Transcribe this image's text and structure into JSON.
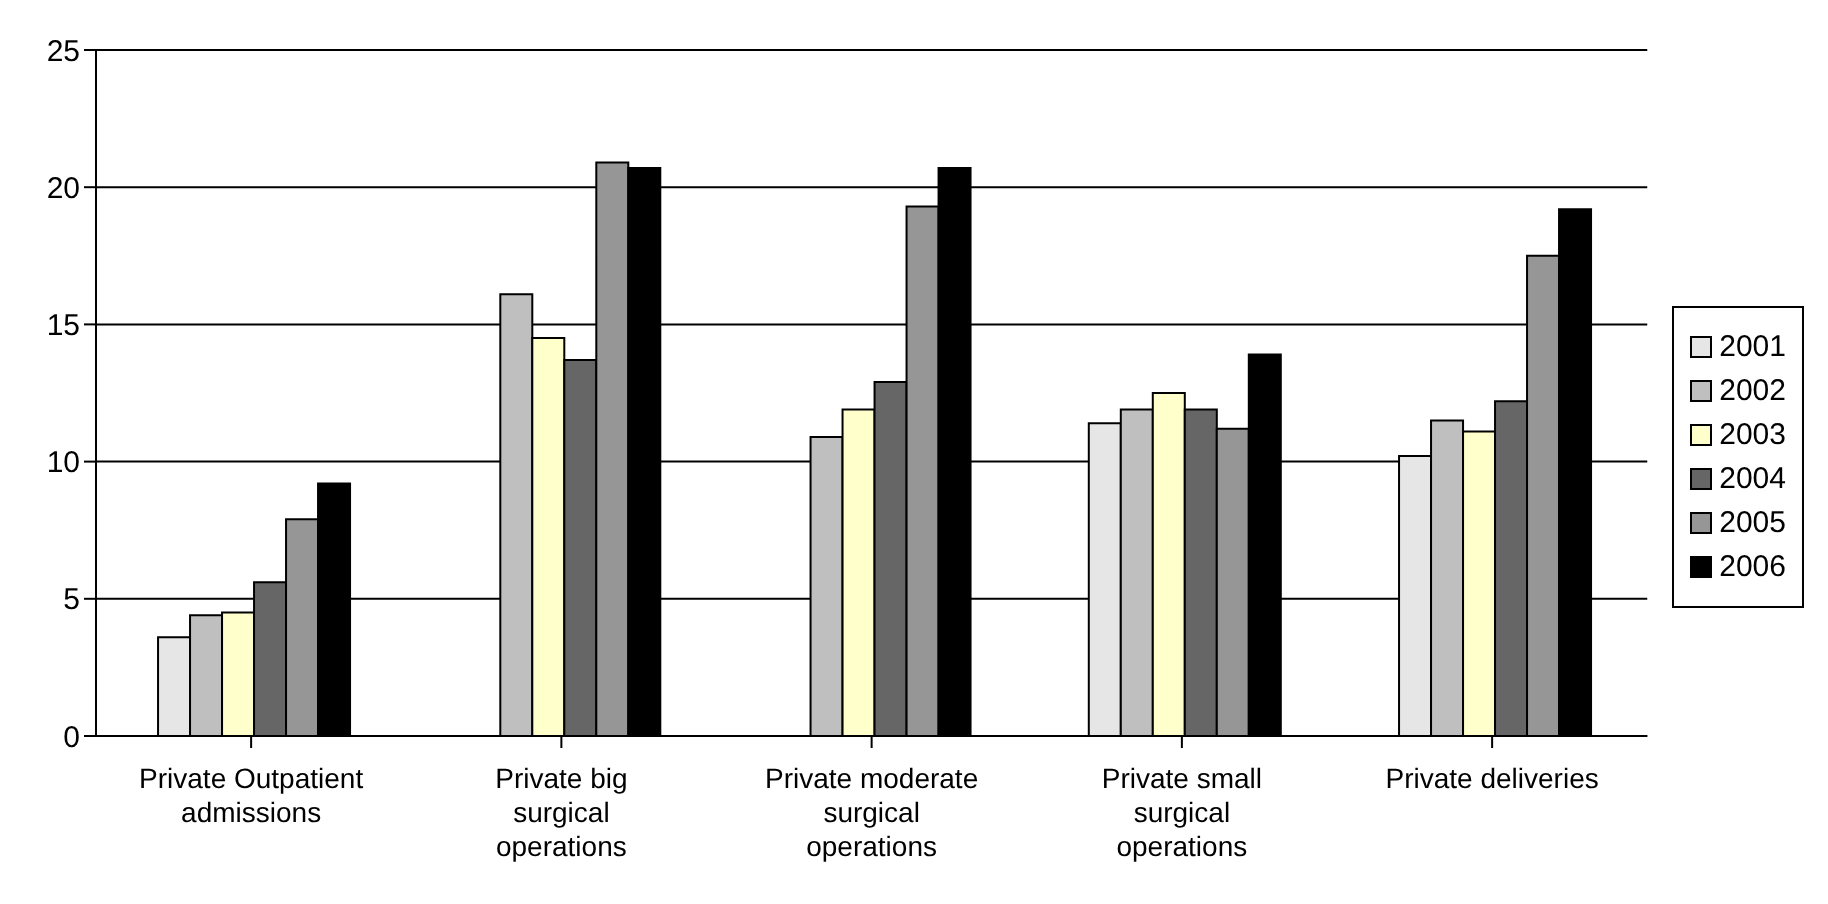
{
  "chart_data": {
    "type": "bar",
    "categories": [
      "Private Outpatient admissions",
      "Private big surgical operations",
      "Private moderate surgical operations",
      "Private small surgical operations",
      "Private deliveries"
    ],
    "series": [
      {
        "name": "2001",
        "color": "#e6e6e6",
        "values": [
          3.6,
          null,
          null,
          11.4,
          10.2
        ]
      },
      {
        "name": "2002",
        "color": "#bfbfbf",
        "values": [
          4.4,
          16.1,
          10.9,
          11.9,
          11.5
        ]
      },
      {
        "name": "2003",
        "color": "#ffffcc",
        "values": [
          4.5,
          14.5,
          11.9,
          12.5,
          11.1
        ]
      },
      {
        "name": "2004",
        "color": "#666666",
        "values": [
          5.6,
          13.7,
          12.9,
          11.9,
          12.2
        ]
      },
      {
        "name": "2005",
        "color": "#969696",
        "values": [
          7.9,
          20.9,
          19.3,
          11.2,
          17.5
        ]
      },
      {
        "name": "2006",
        "color": "#000000",
        "values": [
          9.2,
          20.7,
          20.7,
          13.9,
          19.2
        ]
      }
    ],
    "ylim": [
      0,
      25
    ],
    "yticks": [
      0,
      5,
      10,
      15,
      20,
      25
    ],
    "grid": "y",
    "legend": "right"
  }
}
